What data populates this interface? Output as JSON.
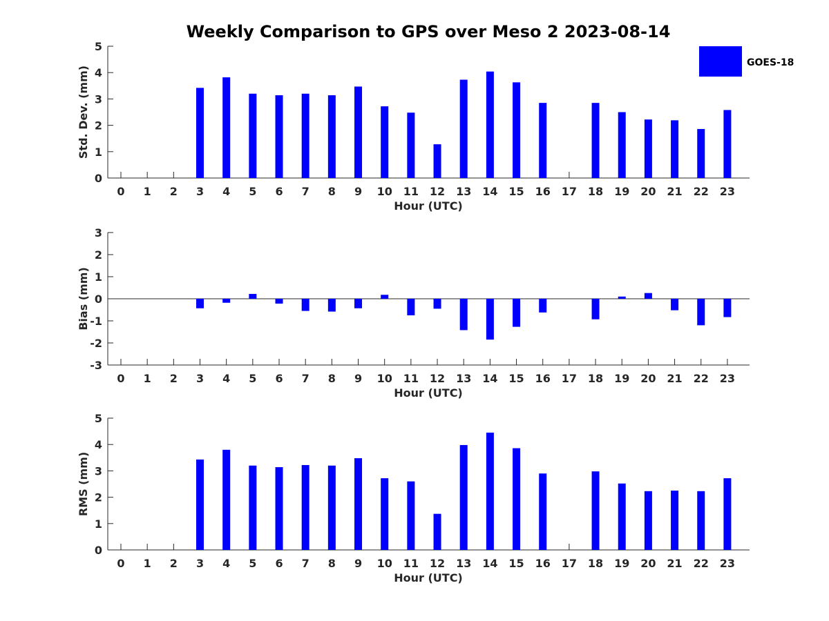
{
  "chart_data": {
    "type": "bar",
    "title": "Weekly Comparison to GPS over Meso 2 2023-08-14",
    "legend": {
      "entries": [
        "GOES-18"
      ],
      "location": "top-right"
    },
    "colors": {
      "series": "#0000ff",
      "axis": "#262626"
    },
    "categories": [
      "0",
      "1",
      "2",
      "3",
      "4",
      "5",
      "6",
      "7",
      "8",
      "9",
      "10",
      "11",
      "12",
      "13",
      "14",
      "15",
      "16",
      "17",
      "18",
      "19",
      "20",
      "21",
      "22",
      "23"
    ],
    "panels": [
      {
        "id": "std",
        "ylabel": "Std. Dev. (mm)",
        "xlabel": "Hour (UTC)",
        "ylim": [
          0,
          5
        ],
        "yticks": [
          0,
          1,
          2,
          3,
          4,
          5
        ],
        "zero_line": false,
        "series": [
          {
            "name": "GOES-18",
            "values": [
              null,
              null,
              null,
              3.42,
              3.82,
              3.2,
              3.14,
              3.2,
              3.14,
              3.47,
              2.72,
              2.48,
              1.28,
              3.73,
              4.04,
              3.63,
              2.85,
              null,
              2.85,
              2.5,
              2.22,
              2.19,
              1.86,
              2.58
            ]
          }
        ]
      },
      {
        "id": "bias",
        "ylabel": "Bias (mm)",
        "xlabel": "Hour (UTC)",
        "ylim": [
          -3,
          3
        ],
        "yticks": [
          -3,
          -2,
          -1,
          0,
          1,
          2,
          3
        ],
        "zero_line": true,
        "series": [
          {
            "name": "GOES-18",
            "values": [
              null,
              null,
              null,
              -0.43,
              -0.18,
              0.22,
              -0.22,
              -0.55,
              -0.58,
              -0.43,
              0.18,
              -0.75,
              -0.45,
              -1.42,
              -1.85,
              -1.27,
              -0.62,
              null,
              -0.93,
              0.1,
              0.26,
              -0.52,
              -1.2,
              -0.83
            ]
          }
        ]
      },
      {
        "id": "rms",
        "ylabel": "RMS (mm)",
        "xlabel": "Hour (UTC)",
        "ylim": [
          0,
          5
        ],
        "yticks": [
          0,
          1,
          2,
          3,
          4,
          5
        ],
        "zero_line": false,
        "series": [
          {
            "name": "GOES-18",
            "values": [
              null,
              null,
              null,
              3.43,
              3.8,
              3.2,
              3.14,
              3.22,
              3.2,
              3.48,
              2.72,
              2.6,
              1.37,
              3.98,
              4.45,
              3.86,
              2.9,
              null,
              2.98,
              2.52,
              2.23,
              2.25,
              2.23,
              2.72
            ]
          }
        ]
      }
    ]
  }
}
